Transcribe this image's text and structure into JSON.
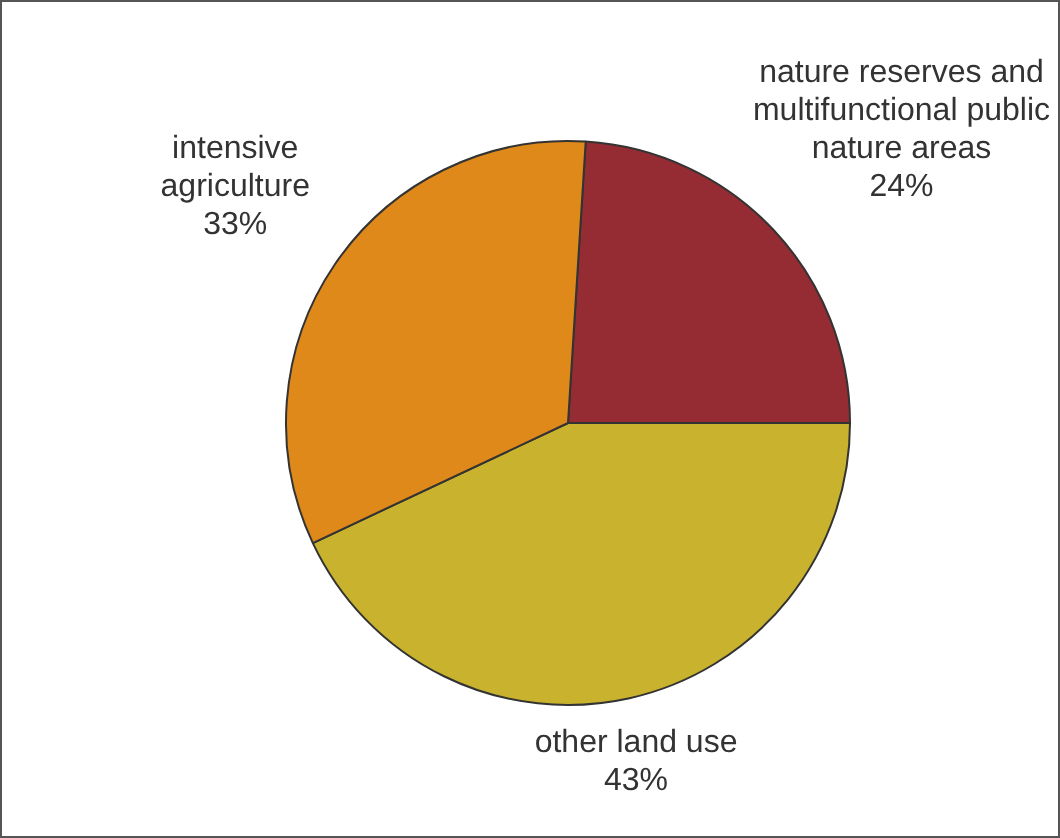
{
  "chart_data": {
    "type": "pie",
    "categories": [
      "nature reserves and multifunctional public nature areas",
      "other land use",
      "intensive agriculture"
    ],
    "values": [
      24,
      43,
      33
    ],
    "colors": [
      "#962c33",
      "#c9b22d",
      "#e0891b"
    ],
    "value_labels": [
      "24%",
      "43%",
      "33%"
    ],
    "legend": false
  }
}
